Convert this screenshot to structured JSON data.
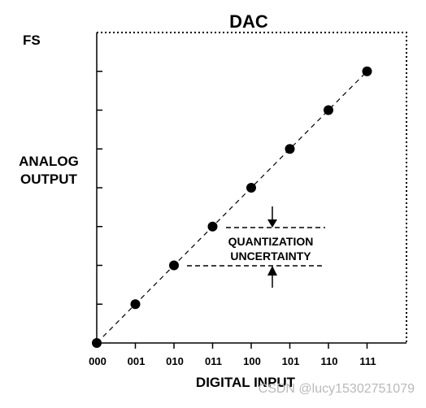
{
  "title": "DAC",
  "fs_label": "FS",
  "y_axis_label": [
    "ANALOG",
    "OUTPUT"
  ],
  "x_axis_label": "DIGITAL INPUT",
  "x_tick_labels": [
    "000",
    "001",
    "010",
    "011",
    "100",
    "101",
    "110",
    "111"
  ],
  "points": [
    {
      "code": "000",
      "level": 0
    },
    {
      "code": "001",
      "level": 1
    },
    {
      "code": "010",
      "level": 2
    },
    {
      "code": "011",
      "level": 3
    },
    {
      "code": "100",
      "level": 4
    },
    {
      "code": "101",
      "level": 5
    },
    {
      "code": "110",
      "level": 6
    },
    {
      "code": "111",
      "level": 7
    }
  ],
  "annotation": [
    "QUANTIZATION",
    "UNCERTAINTY"
  ],
  "watermark": "CSDN @lucy15302751079"
}
